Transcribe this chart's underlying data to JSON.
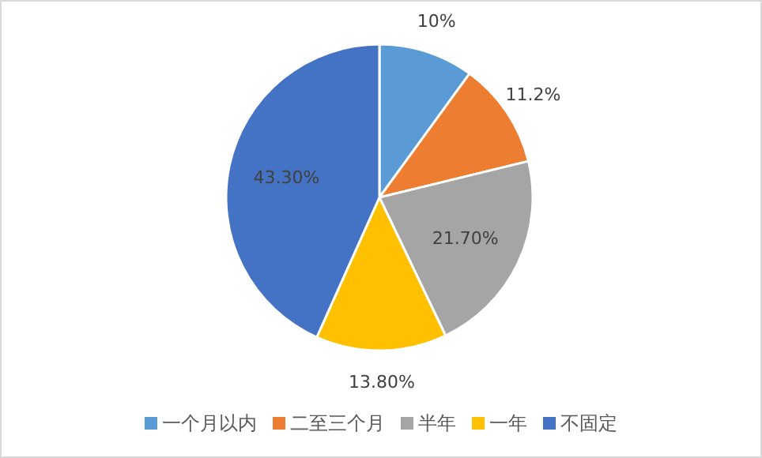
{
  "chart_data": {
    "type": "pie",
    "categories": [
      "一个月以内",
      "二至三个月",
      "半年",
      "一年",
      "不固定"
    ],
    "values": [
      10,
      11.2,
      21.7,
      13.8,
      43.3
    ],
    "colors": [
      "#5b9bd5",
      "#ed7d31",
      "#a5a5a5",
      "#ffc000",
      "#4472c4"
    ],
    "value_labels": [
      "10%",
      "11.2%",
      "21.70%",
      "13.80%",
      "43.30%"
    ],
    "legend": "bottom"
  }
}
